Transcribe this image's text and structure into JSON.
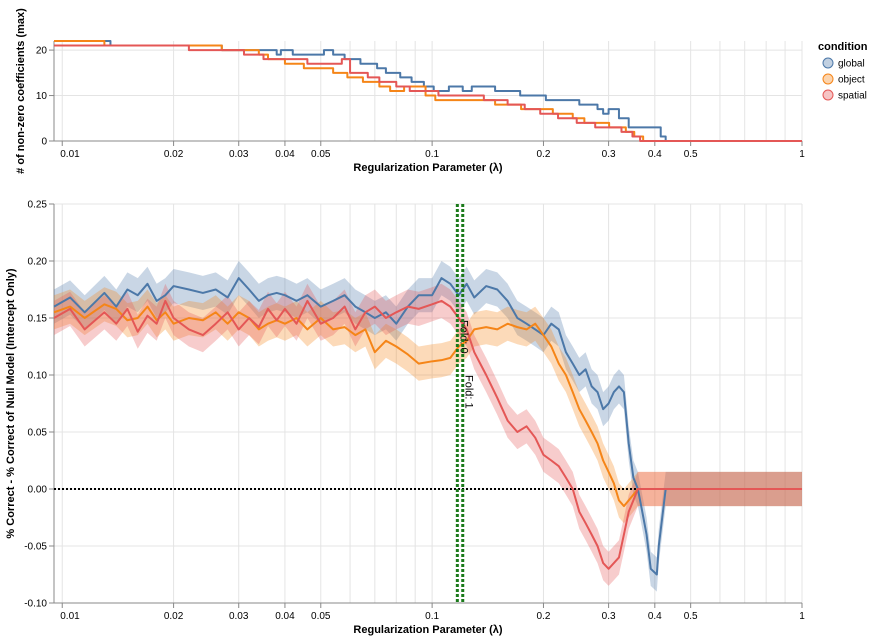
{
  "chart_data": [
    {
      "type": "line",
      "id": "top",
      "xlabel": "Regularization Parameter (λ)",
      "ylabel": "# of non-zero coefficients (max)",
      "xscale": "log",
      "xlim": [
        0.0095,
        1
      ],
      "ylim": [
        0,
        22
      ],
      "xticks": [
        0.01,
        0.02,
        0.03,
        0.04,
        0.05,
        0.1,
        0.2,
        0.3,
        0.4,
        0.5,
        1
      ],
      "xtick_labels": [
        "0.01",
        "0.02",
        "0.03",
        "0.04",
        "0.05",
        "0.1",
        "0.2",
        "0.3",
        "0.4",
        "0.5",
        "1"
      ],
      "yticks": [
        0,
        10,
        20
      ],
      "ytick_labels": [
        "0",
        "10",
        "20"
      ],
      "grid": true,
      "series": [
        {
          "name": "global",
          "color": "#4c78a8",
          "x": [
            0.0095,
            0.013,
            0.0135,
            0.026,
            0.027,
            0.036,
            0.038,
            0.039,
            0.042,
            0.051,
            0.054,
            0.058,
            0.064,
            0.071,
            0.075,
            0.082,
            0.088,
            0.095,
            0.101,
            0.111,
            0.121,
            0.128,
            0.148,
            0.173,
            0.187,
            0.203,
            0.232,
            0.25,
            0.28,
            0.29,
            0.3,
            0.32,
            0.34,
            0.39,
            0.415,
            0.428,
            1
          ],
          "y": [
            22,
            22,
            21,
            21,
            20,
            20,
            19,
            20,
            19,
            20,
            19,
            18,
            17,
            16,
            15,
            14,
            13,
            12,
            11,
            12,
            11,
            12,
            11,
            10,
            10,
            9,
            9,
            8,
            7,
            6,
            7,
            5,
            3,
            3,
            1,
            0,
            0
          ]
        },
        {
          "name": "object",
          "color": "#f58518",
          "x": [
            0.0095,
            0.012,
            0.013,
            0.025,
            0.027,
            0.029,
            0.034,
            0.036,
            0.04,
            0.045,
            0.054,
            0.059,
            0.065,
            0.072,
            0.077,
            0.084,
            0.096,
            0.102,
            0.139,
            0.148,
            0.174,
            0.212,
            0.24,
            0.258,
            0.277,
            0.301,
            0.334,
            0.352,
            0.372,
            1
          ],
          "y": [
            22,
            22,
            21,
            21,
            20,
            20,
            19,
            18,
            17,
            16,
            15,
            14,
            13,
            12,
            11,
            12,
            10,
            9,
            9,
            8,
            7,
            6,
            5,
            4,
            4,
            3,
            2,
            1,
            0,
            0
          ]
        },
        {
          "name": "spatial",
          "color": "#e45756",
          "x": [
            0.0095,
            0.013,
            0.014,
            0.022,
            0.024,
            0.031,
            0.033,
            0.035,
            0.041,
            0.046,
            0.057,
            0.06,
            0.067,
            0.072,
            0.08,
            0.087,
            0.092,
            0.104,
            0.121,
            0.138,
            0.16,
            0.178,
            0.196,
            0.219,
            0.246,
            0.276,
            0.308,
            0.325,
            0.348,
            0.365,
            1
          ],
          "y": [
            21,
            21,
            21,
            20,
            20,
            19,
            19,
            18,
            18,
            17,
            18,
            15,
            14,
            13,
            12,
            11,
            11,
            10,
            10,
            9,
            8,
            7,
            6,
            5,
            4,
            3,
            3,
            2,
            1,
            0,
            0
          ]
        }
      ],
      "legend": {
        "title": "condition",
        "position": "top-right",
        "entries": [
          "global",
          "object",
          "spatial"
        ]
      }
    },
    {
      "type": "line",
      "id": "bottom",
      "xlabel": "Regularization Parameter (λ)",
      "ylabel": "% Correct - % Correct of Null Model (Intercept Only)",
      "xscale": "log",
      "xlim": [
        0.0095,
        1
      ],
      "ylim": [
        -0.1,
        0.25
      ],
      "xticks": [
        0.01,
        0.02,
        0.03,
        0.04,
        0.05,
        0.1,
        0.2,
        0.3,
        0.4,
        0.5,
        1
      ],
      "xtick_labels": [
        "0.01",
        "0.02",
        "0.03",
        "0.04",
        "0.05",
        "0.1",
        "0.2",
        "0.3",
        "0.4",
        "0.5",
        "1"
      ],
      "yticks": [
        -0.1,
        -0.05,
        0,
        0.05,
        0.1,
        0.15,
        0.2,
        0.25
      ],
      "ytick_labels": [
        "-0.10",
        "-0.05",
        "0.00",
        "0.05",
        "0.10",
        "0.15",
        "0.20",
        "0.25"
      ],
      "grid": true,
      "band_half_width": 0.015,
      "zero_line": true,
      "reference_lines": [
        {
          "x": 0.117,
          "label": "Fold: 0",
          "color": "#1a7a1a"
        },
        {
          "x": 0.121,
          "label": "Fold: 1",
          "color": "#1a7a1a"
        }
      ],
      "series": [
        {
          "name": "global",
          "color": "#4c78a8",
          "x": [
            0.0095,
            0.0105,
            0.0115,
            0.013,
            0.014,
            0.015,
            0.016,
            0.017,
            0.018,
            0.019,
            0.02,
            0.022,
            0.024,
            0.026,
            0.028,
            0.03,
            0.032,
            0.034,
            0.036,
            0.038,
            0.04,
            0.043,
            0.046,
            0.05,
            0.054,
            0.058,
            0.062,
            0.066,
            0.07,
            0.075,
            0.08,
            0.086,
            0.092,
            0.1,
            0.106,
            0.112,
            0.118,
            0.124,
            0.13,
            0.14,
            0.15,
            0.16,
            0.17,
            0.18,
            0.19,
            0.2,
            0.21,
            0.22,
            0.23,
            0.24,
            0.25,
            0.26,
            0.27,
            0.28,
            0.29,
            0.3,
            0.31,
            0.32,
            0.33,
            0.34,
            0.35,
            0.36,
            0.37,
            0.38,
            0.39,
            0.405,
            0.41,
            0.428,
            1
          ],
          "y": [
            0.16,
            0.168,
            0.155,
            0.172,
            0.16,
            0.175,
            0.17,
            0.18,
            0.165,
            0.17,
            0.178,
            0.175,
            0.172,
            0.175,
            0.168,
            0.185,
            0.175,
            0.165,
            0.17,
            0.172,
            0.17,
            0.165,
            0.17,
            0.16,
            0.165,
            0.17,
            0.16,
            0.155,
            0.15,
            0.155,
            0.145,
            0.16,
            0.17,
            0.17,
            0.185,
            0.18,
            0.17,
            0.18,
            0.168,
            0.178,
            0.175,
            0.165,
            0.15,
            0.145,
            0.14,
            0.135,
            0.145,
            0.14,
            0.12,
            0.11,
            0.1,
            0.105,
            0.09,
            0.085,
            0.07,
            0.075,
            0.085,
            0.09,
            0.085,
            0.04,
            0.01,
            0.0,
            -0.02,
            -0.04,
            -0.07,
            -0.075,
            -0.05,
            0.0,
            0.0
          ]
        },
        {
          "name": "object",
          "color": "#f58518",
          "x": [
            0.0095,
            0.0105,
            0.0115,
            0.013,
            0.014,
            0.015,
            0.016,
            0.017,
            0.018,
            0.019,
            0.02,
            0.022,
            0.024,
            0.026,
            0.028,
            0.03,
            0.032,
            0.034,
            0.036,
            0.038,
            0.04,
            0.043,
            0.046,
            0.05,
            0.054,
            0.058,
            0.062,
            0.066,
            0.07,
            0.075,
            0.08,
            0.086,
            0.092,
            0.1,
            0.106,
            0.112,
            0.118,
            0.124,
            0.13,
            0.14,
            0.15,
            0.16,
            0.17,
            0.18,
            0.19,
            0.2,
            0.21,
            0.22,
            0.23,
            0.24,
            0.25,
            0.26,
            0.27,
            0.28,
            0.29,
            0.3,
            0.31,
            0.32,
            0.33,
            0.34,
            0.35,
            0.36,
            0.37,
            0.38,
            0.39,
            1
          ],
          "y": [
            0.155,
            0.16,
            0.15,
            0.162,
            0.158,
            0.148,
            0.15,
            0.16,
            0.148,
            0.155,
            0.145,
            0.15,
            0.148,
            0.155,
            0.145,
            0.155,
            0.15,
            0.14,
            0.145,
            0.148,
            0.145,
            0.15,
            0.14,
            0.15,
            0.14,
            0.142,
            0.135,
            0.14,
            0.12,
            0.13,
            0.125,
            0.118,
            0.11,
            0.112,
            0.113,
            0.115,
            0.125,
            0.13,
            0.14,
            0.142,
            0.14,
            0.145,
            0.142,
            0.14,
            0.145,
            0.135,
            0.125,
            0.11,
            0.1,
            0.085,
            0.07,
            0.06,
            0.05,
            0.04,
            0.025,
            0.015,
            0.005,
            -0.01,
            -0.015,
            -0.01,
            -0.005,
            0.0,
            0.0,
            0.0,
            0.0,
            0.0
          ]
        },
        {
          "name": "spatial",
          "color": "#e45756",
          "x": [
            0.0095,
            0.0105,
            0.0115,
            0.013,
            0.014,
            0.015,
            0.016,
            0.017,
            0.018,
            0.019,
            0.02,
            0.022,
            0.024,
            0.026,
            0.028,
            0.03,
            0.032,
            0.034,
            0.036,
            0.038,
            0.04,
            0.043,
            0.046,
            0.05,
            0.054,
            0.058,
            0.062,
            0.066,
            0.07,
            0.075,
            0.08,
            0.086,
            0.092,
            0.1,
            0.106,
            0.112,
            0.118,
            0.124,
            0.13,
            0.14,
            0.15,
            0.16,
            0.17,
            0.18,
            0.19,
            0.2,
            0.21,
            0.22,
            0.23,
            0.24,
            0.25,
            0.26,
            0.27,
            0.28,
            0.29,
            0.3,
            0.31,
            0.32,
            0.33,
            0.34,
            0.35,
            0.36,
            0.37,
            0.38,
            0.39,
            1
          ],
          "y": [
            0.15,
            0.158,
            0.14,
            0.155,
            0.145,
            0.158,
            0.138,
            0.152,
            0.145,
            0.165,
            0.15,
            0.14,
            0.135,
            0.145,
            0.155,
            0.14,
            0.15,
            0.142,
            0.158,
            0.148,
            0.158,
            0.145,
            0.165,
            0.145,
            0.15,
            0.16,
            0.14,
            0.155,
            0.16,
            0.15,
            0.155,
            0.16,
            0.158,
            0.162,
            0.165,
            0.16,
            0.15,
            0.14,
            0.12,
            0.1,
            0.08,
            0.06,
            0.05,
            0.055,
            0.045,
            0.03,
            0.025,
            0.02,
            0.01,
            0.0,
            -0.02,
            -0.03,
            -0.04,
            -0.05,
            -0.065,
            -0.07,
            -0.065,
            -0.06,
            -0.04,
            -0.02,
            -0.01,
            0.0,
            0.0,
            0.0,
            0.0,
            0.0
          ]
        }
      ]
    }
  ]
}
